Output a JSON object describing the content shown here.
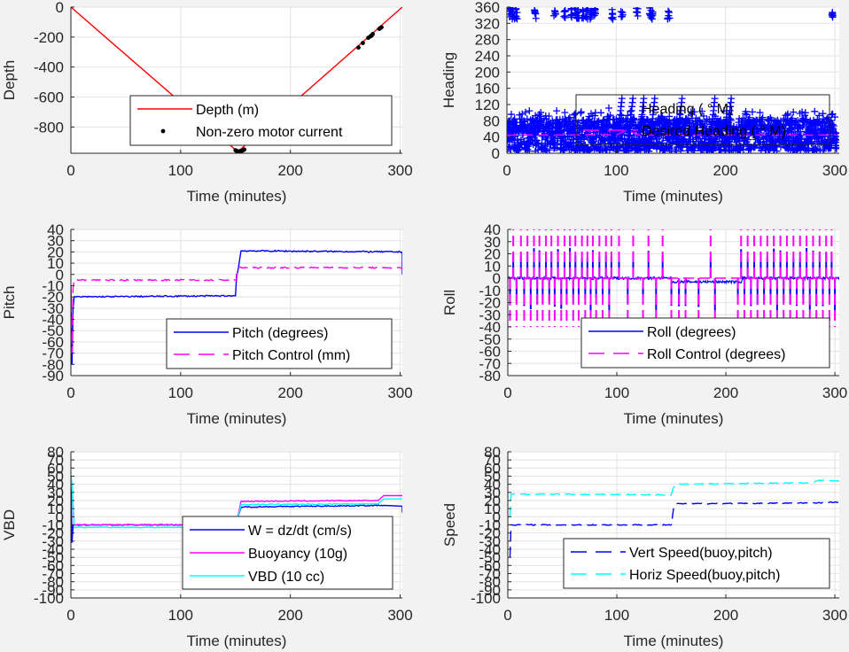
{
  "chart_data": [
    {
      "id": "depth",
      "type": "line",
      "title": "",
      "xlabel": "Time (minutes)",
      "ylabel": "Depth",
      "xlim": [
        0,
        302
      ],
      "ylim": [
        -975,
        0
      ],
      "xticks": [
        0,
        100,
        200,
        300
      ],
      "yticks": [
        0,
        -200,
        -400,
        -600,
        -800
      ],
      "grid": true,
      "legend_position": "bottom-center",
      "series": [
        {
          "name": "Depth (m)",
          "style": "solid",
          "color": "#ff0000",
          "x": [
            0,
            152,
            302
          ],
          "y": [
            0,
            -965,
            0
          ]
        },
        {
          "name": "Non-zero motor current",
          "style": "dots",
          "color": "#000000",
          "x": [
            150,
            151,
            152,
            153,
            154,
            155,
            156,
            157,
            158,
            262,
            266,
            271,
            273,
            274,
            275,
            281,
            282,
            283
          ],
          "y": [
            -955,
            -960,
            -962,
            -963,
            -962,
            -960,
            -958,
            -955,
            -950,
            -270,
            -240,
            -205,
            -195,
            -190,
            -180,
            -145,
            -140,
            -135
          ]
        }
      ]
    },
    {
      "id": "heading",
      "type": "scatter",
      "title": "",
      "xlabel": "Time (minutes)",
      "ylabel": "Heading",
      "xlim": [
        0,
        304
      ],
      "ylim": [
        0,
        360
      ],
      "xticks": [
        0,
        100,
        200,
        300
      ],
      "yticks": [
        0,
        40,
        80,
        120,
        160,
        200,
        240,
        280,
        320,
        360
      ],
      "grid": true,
      "legend_position": "center-right",
      "series": [
        {
          "name": "Heading ( ° M)",
          "style": "plus-markers",
          "color": "#0000ff",
          "description": "dense scatter mostly between 0 and 100 degrees, with wrap-around clusters near 320-360 and spikes to ~140",
          "band_low": 5,
          "band_high": 85,
          "upper_clusters_x": [
            1,
            3,
            5,
            8,
            25,
            43,
            52,
            58,
            62,
            64,
            68,
            72,
            76,
            80,
            95,
            104,
            118,
            130,
            132,
            147,
            297
          ],
          "spikes_x": [
            100,
            110,
            120,
            130,
            155,
            185,
            200
          ]
        },
        {
          "name": "Desired Heading ( ° M)",
          "style": "dashed",
          "color": "#ff00ff",
          "x": [
            0,
            100,
            110,
            120,
            302
          ],
          "y": [
            45,
            45,
            57,
            45,
            45
          ]
        }
      ]
    },
    {
      "id": "pitch",
      "type": "line",
      "title": "",
      "xlabel": "Time (minutes)",
      "ylabel": "Pitch",
      "xlim": [
        0,
        302
      ],
      "ylim": [
        -90,
        40
      ],
      "xticks": [
        0,
        100,
        200,
        300
      ],
      "yticks": [
        40,
        30,
        20,
        10,
        0,
        -10,
        -20,
        -30,
        -40,
        -50,
        -60,
        -70,
        -80,
        -90
      ],
      "grid": true,
      "legend_position": "bottom-right",
      "series": [
        {
          "name": "Pitch (degrees)",
          "style": "solid",
          "color": "#0000ff",
          "x": [
            0,
            1,
            2,
            3,
            150,
            151,
            152,
            155,
            302,
            302
          ],
          "y": [
            -10,
            -80,
            -30,
            -20,
            -19,
            0,
            2,
            21,
            20,
            0
          ]
        },
        {
          "name": "Pitch Control (mm)",
          "style": "dashed",
          "color": "#ff00ff",
          "x": [
            0,
            1,
            2,
            3,
            151,
            152,
            302
          ],
          "y": [
            -10,
            -70,
            -12,
            -5,
            -5,
            6,
            6
          ]
        }
      ]
    },
    {
      "id": "roll",
      "type": "line",
      "title": "",
      "xlabel": "Time (minutes)",
      "ylabel": "Roll",
      "xlim": [
        0,
        304
      ],
      "ylim": [
        -80,
        40
      ],
      "xticks": [
        0,
        100,
        200,
        300
      ],
      "yticks": [
        40,
        30,
        20,
        10,
        0,
        -10,
        -20,
        -30,
        -40,
        -50,
        -60,
        -70,
        -80
      ],
      "grid": true,
      "legend_position": "bottom-right",
      "series": [
        {
          "name": "Roll (degrees)",
          "style": "solid",
          "color": "#0000ff",
          "description": "mostly near 0 with spikes to about +/-25 at each roll-control flip"
        },
        {
          "name": "Roll Control (degrees)",
          "style": "dashed",
          "color": "#ff00ff",
          "description": "switches between +40 and -40 periodically, flat at 0 from ~150 to ~215",
          "positive_flip_x": [
            5,
            12,
            18,
            24,
            29,
            35,
            40,
            46,
            52,
            57,
            62,
            68,
            73,
            78,
            84,
            90,
            95,
            102,
            115,
            129,
            142,
            186,
            214,
            220,
            226,
            232,
            238,
            244,
            250,
            256,
            262,
            268,
            274,
            280,
            286,
            292,
            297
          ],
          "negative_flip_x": [
            2,
            8,
            15,
            21,
            27,
            32,
            38,
            43,
            49,
            54,
            60,
            65,
            71,
            76,
            81,
            87,
            93,
            110,
            124,
            136,
            150,
            157,
            163,
            175,
            190,
            211,
            217,
            223,
            229,
            235,
            241,
            247,
            253,
            259,
            265,
            271,
            277,
            283,
            289,
            295,
            300
          ]
        }
      ]
    },
    {
      "id": "vbd",
      "type": "line",
      "title": "",
      "xlabel": "Time (minutes)",
      "ylabel": "VBD",
      "xlim": [
        0,
        302
      ],
      "ylim": [
        -100,
        80
      ],
      "xticks": [
        0,
        100,
        200,
        300
      ],
      "yticks": [
        80,
        70,
        60,
        50,
        40,
        30,
        20,
        10,
        0,
        -10,
        -20,
        -30,
        -40,
        -50,
        -60,
        -70,
        -80,
        -90,
        -100
      ],
      "grid": true,
      "legend_position": "bottom-right",
      "series": [
        {
          "name": "W = dz/dt (cm/s)",
          "style": "solid",
          "color": "#0000ff",
          "x": [
            0,
            1,
            2,
            3,
            150,
            151,
            155,
            285,
            302,
            302
          ],
          "y": [
            50,
            -32,
            -10,
            -10,
            -10,
            -8,
            12,
            14,
            13,
            5
          ]
        },
        {
          "name": "Buoyancy (10g)",
          "style": "solid",
          "color": "#ff00ff",
          "x": [
            0,
            1,
            3,
            150,
            151,
            155,
            280,
            285,
            302
          ],
          "y": [
            50,
            40,
            -10,
            -10,
            -8,
            19,
            20,
            26,
            26
          ]
        },
        {
          "name": "VBD (10 cc)",
          "style": "solid",
          "color": "#00ffff",
          "x": [
            0,
            1,
            3,
            150,
            151,
            155,
            280,
            285,
            302
          ],
          "y": [
            50,
            40,
            -13,
            -13,
            -10,
            15,
            16,
            22,
            22
          ]
        }
      ]
    },
    {
      "id": "speed",
      "type": "line",
      "title": "",
      "xlabel": "Time (minutes)",
      "ylabel": "Speed",
      "xlim": [
        0,
        304
      ],
      "ylim": [
        -100,
        80
      ],
      "xticks": [
        0,
        100,
        200,
        300
      ],
      "yticks": [
        80,
        70,
        60,
        50,
        40,
        30,
        20,
        10,
        0,
        -10,
        -20,
        -30,
        -40,
        -50,
        -60,
        -70,
        -80,
        -90,
        -100
      ],
      "grid": true,
      "legend_position": "bottom-right",
      "series": [
        {
          "name": "Vert Speed(buoy,pitch)",
          "style": "dashed",
          "color": "#0000ff",
          "x": [
            2,
            3,
            4,
            150,
            151,
            152,
            155,
            280,
            304
          ],
          "y": [
            -50,
            -10,
            -10,
            -10,
            0,
            10,
            16,
            17,
            18
          ]
        },
        {
          "name": "Horiz Speed(buoy,pitch)",
          "style": "dashed",
          "color": "#00ffff",
          "x": [
            2,
            3,
            4,
            150,
            151,
            152,
            155,
            280,
            285,
            304
          ],
          "y": [
            0,
            28,
            28,
            27,
            32,
            36,
            40,
            42,
            45,
            44
          ]
        }
      ]
    }
  ]
}
